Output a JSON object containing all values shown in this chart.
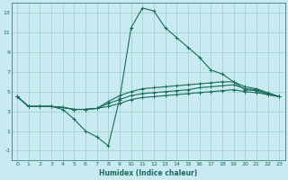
{
  "xlabel": "Humidex (Indice chaleur)",
  "background_color": "#c8eaf0",
  "grid_color": "#9dcfca",
  "line_color": "#1a6b5a",
  "xlim": [
    -0.5,
    23.5
  ],
  "ylim": [
    -2.0,
    14.0
  ],
  "yticks": [
    -1,
    1,
    3,
    5,
    7,
    9,
    11,
    13
  ],
  "xticks": [
    0,
    1,
    2,
    3,
    4,
    5,
    6,
    7,
    8,
    9,
    10,
    11,
    12,
    13,
    14,
    15,
    16,
    17,
    18,
    19,
    20,
    21,
    22,
    23
  ],
  "lines": [
    {
      "x": [
        0,
        1,
        2,
        3,
        4,
        5,
        6,
        7,
        8,
        9,
        10,
        11,
        12,
        13,
        14,
        15,
        16,
        17,
        18,
        19,
        20,
        21,
        22,
        23
      ],
      "y": [
        4.5,
        3.5,
        3.5,
        3.5,
        3.2,
        2.2,
        1.0,
        0.4,
        -0.5,
        4.3,
        11.5,
        13.5,
        13.2,
        11.5,
        10.5,
        9.5,
        8.5,
        7.2,
        6.8,
        6.0,
        5.2,
        5.1,
        4.7,
        4.5
      ]
    },
    {
      "x": [
        0,
        1,
        2,
        3,
        4,
        5,
        6,
        7,
        8,
        9,
        10,
        11,
        12,
        13,
        14,
        15,
        16,
        17,
        18,
        19,
        20,
        21,
        22,
        23
      ],
      "y": [
        4.5,
        3.5,
        3.5,
        3.5,
        3.4,
        3.2,
        3.2,
        3.3,
        3.5,
        3.8,
        4.2,
        4.4,
        4.5,
        4.6,
        4.7,
        4.8,
        4.9,
        5.0,
        5.1,
        5.2,
        5.0,
        4.9,
        4.7,
        4.5
      ]
    },
    {
      "x": [
        0,
        1,
        2,
        3,
        4,
        5,
        6,
        7,
        8,
        9,
        10,
        11,
        12,
        13,
        14,
        15,
        16,
        17,
        18,
        19,
        20,
        21,
        22,
        23
      ],
      "y": [
        4.5,
        3.5,
        3.5,
        3.5,
        3.4,
        3.2,
        3.2,
        3.3,
        3.8,
        4.2,
        4.6,
        4.8,
        4.9,
        5.0,
        5.1,
        5.2,
        5.4,
        5.5,
        5.6,
        5.7,
        5.3,
        5.2,
        4.8,
        4.5
      ]
    },
    {
      "x": [
        0,
        1,
        2,
        3,
        4,
        5,
        6,
        7,
        8,
        9,
        10,
        11,
        12,
        13,
        14,
        15,
        16,
        17,
        18,
        19,
        20,
        21,
        22,
        23
      ],
      "y": [
        4.5,
        3.5,
        3.5,
        3.5,
        3.4,
        3.2,
        3.2,
        3.3,
        4.0,
        4.6,
        5.0,
        5.3,
        5.4,
        5.5,
        5.6,
        5.7,
        5.8,
        5.9,
        6.0,
        6.0,
        5.5,
        5.3,
        4.9,
        4.5
      ]
    }
  ]
}
